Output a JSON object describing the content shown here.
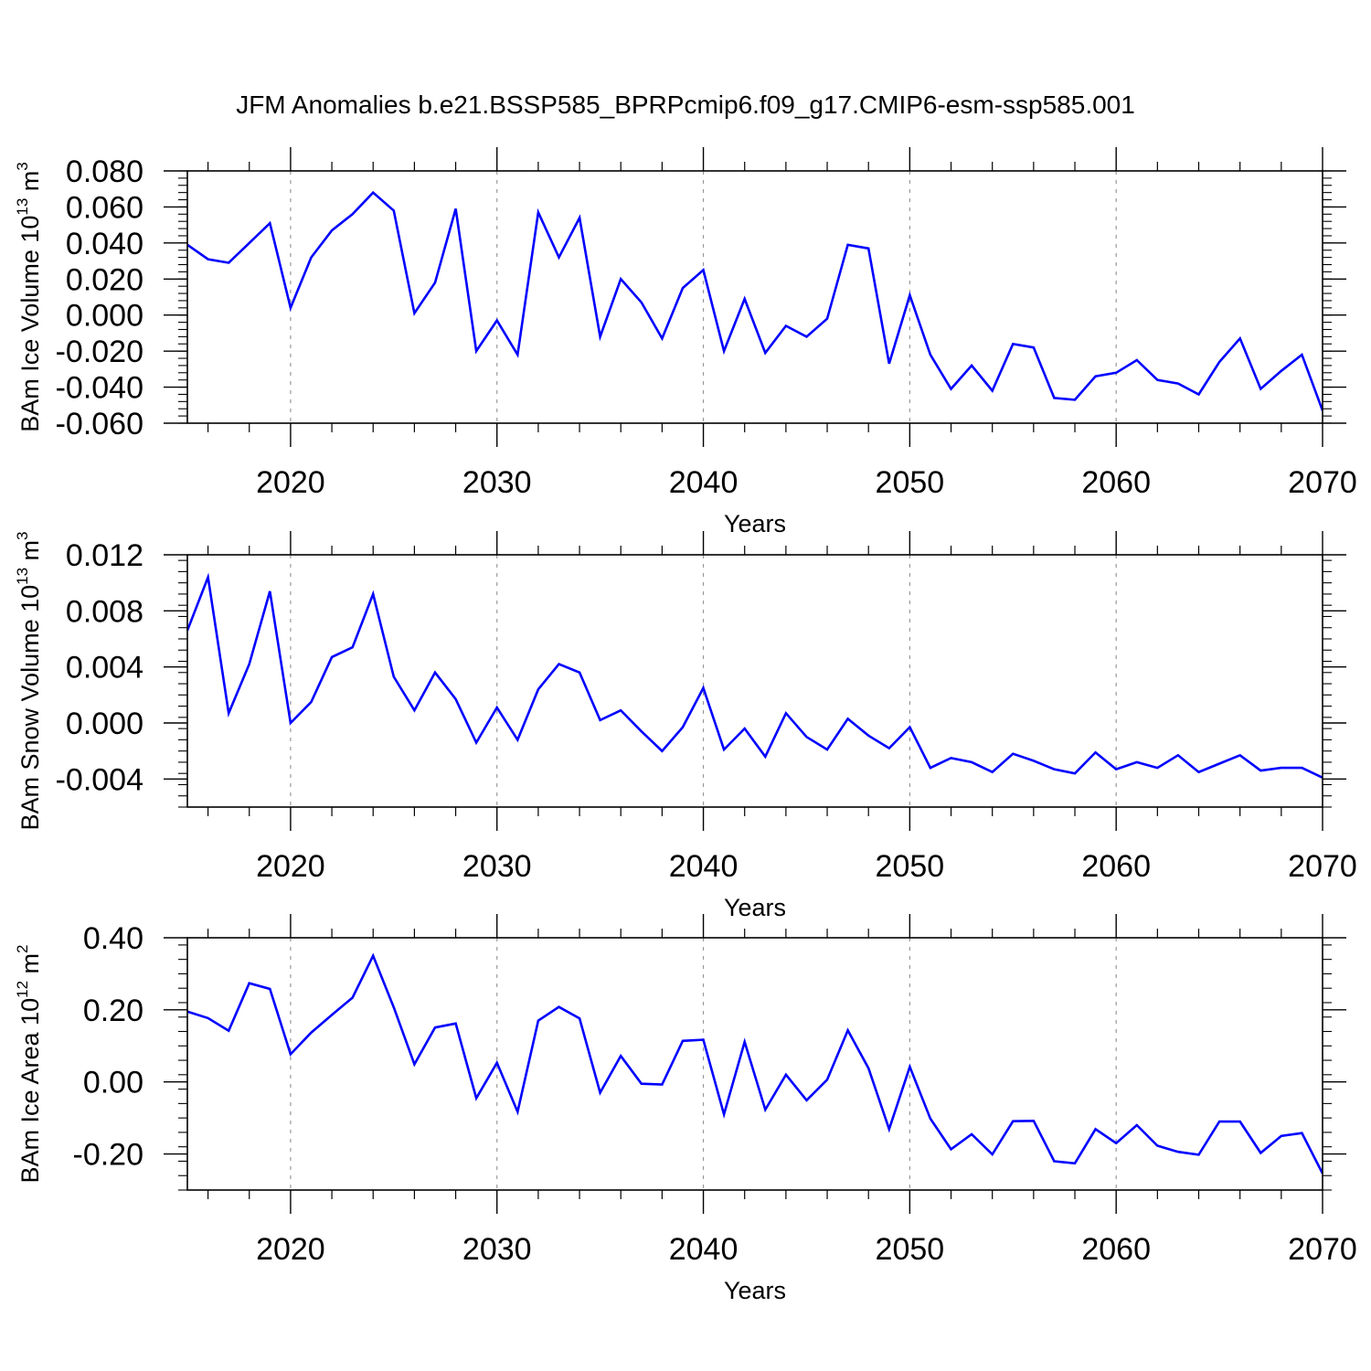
{
  "title": "JFM Anomalies b.e21.BSSP585_BPRPcmip6.f09_g17.CMIP6-esm-ssp585.001",
  "colors": {
    "line": "#0000ff",
    "axis": "#000000",
    "grid": "#999999"
  },
  "chart_data": [
    {
      "type": "line",
      "ylabel": {
        "main": "BAm Ice Volume 10",
        "exp1": "13",
        "mid": " m",
        "exp2": "3"
      },
      "xlabel": "Years",
      "xlim": [
        2015,
        2070
      ],
      "ylim": [
        -0.06,
        0.08
      ],
      "xticks": [
        2020,
        2030,
        2040,
        2050,
        2060,
        2070
      ],
      "xtick_labels": [
        "2020",
        "2030",
        "2040",
        "2050",
        "2060",
        "2070"
      ],
      "yticks": [
        -0.06,
        -0.04,
        -0.02,
        0.0,
        0.02,
        0.04,
        0.06,
        0.08
      ],
      "ytick_labels": [
        "-0.060",
        "-0.040",
        "-0.020",
        "0.000",
        "0.020",
        "0.040",
        "0.060",
        "0.080"
      ],
      "grid": "vertical dashed at major x ticks",
      "x": [
        2015,
        2016,
        2017,
        2018,
        2019,
        2020,
        2021,
        2022,
        2023,
        2024,
        2025,
        2026,
        2027,
        2028,
        2029,
        2030,
        2031,
        2032,
        2033,
        2034,
        2035,
        2036,
        2037,
        2038,
        2039,
        2040,
        2041,
        2042,
        2043,
        2044,
        2045,
        2046,
        2047,
        2048,
        2049,
        2050,
        2051,
        2052,
        2053,
        2054,
        2055,
        2056,
        2057,
        2058,
        2059,
        2060,
        2061,
        2062,
        2063,
        2064,
        2065,
        2066,
        2067,
        2068,
        2069,
        2070
      ],
      "values": [
        0.039,
        0.031,
        0.029,
        0.04,
        0.051,
        0.004,
        0.032,
        0.047,
        0.056,
        0.068,
        0.058,
        0.001,
        0.018,
        0.059,
        -0.02,
        -0.003,
        -0.022,
        0.057,
        0.032,
        0.054,
        -0.012,
        0.02,
        0.007,
        -0.013,
        0.015,
        0.025,
        -0.02,
        0.009,
        -0.021,
        -0.006,
        -0.012,
        -0.002,
        0.039,
        0.037,
        -0.027,
        0.011,
        -0.022,
        -0.041,
        -0.028,
        -0.042,
        -0.016,
        -0.018,
        -0.046,
        -0.047,
        -0.034,
        -0.032,
        -0.025,
        -0.036,
        -0.038,
        -0.044,
        -0.026,
        -0.013,
        -0.041,
        -0.031,
        -0.022,
        -0.053
      ]
    },
    {
      "type": "line",
      "ylabel": {
        "main": "BAm Snow Volume 10",
        "exp1": "13",
        "mid": " m",
        "exp2": "3"
      },
      "xlabel": "Years",
      "xlim": [
        2015,
        2070
      ],
      "ylim": [
        -0.006,
        0.012
      ],
      "xticks": [
        2020,
        2030,
        2040,
        2050,
        2060,
        2070
      ],
      "xtick_labels": [
        "2020",
        "2030",
        "2040",
        "2050",
        "2060",
        "2070"
      ],
      "yticks": [
        -0.004,
        0.0,
        0.004,
        0.008,
        0.012
      ],
      "ytick_labels": [
        "-0.004",
        "0.000",
        "0.004",
        "0.008",
        "0.012"
      ],
      "grid": "vertical dashed at major x ticks",
      "x": [
        2015,
        2016,
        2017,
        2018,
        2019,
        2020,
        2021,
        2022,
        2023,
        2024,
        2025,
        2026,
        2027,
        2028,
        2029,
        2030,
        2031,
        2032,
        2033,
        2034,
        2035,
        2036,
        2037,
        2038,
        2039,
        2040,
        2041,
        2042,
        2043,
        2044,
        2045,
        2046,
        2047,
        2048,
        2049,
        2050,
        2051,
        2052,
        2053,
        2054,
        2055,
        2056,
        2057,
        2058,
        2059,
        2060,
        2061,
        2062,
        2063,
        2064,
        2065,
        2066,
        2067,
        2068,
        2069,
        2070
      ],
      "values": [
        0.0066,
        0.0104,
        0.0007,
        0.0042,
        0.0094,
        0.0,
        0.0015,
        0.0047,
        0.0054,
        0.0092,
        0.0033,
        0.0009,
        0.0036,
        0.0017,
        -0.0014,
        0.0011,
        -0.0012,
        0.0024,
        0.0042,
        0.0036,
        0.0002,
        0.0009,
        -0.0006,
        -0.002,
        -0.0003,
        0.0025,
        -0.0019,
        -0.0004,
        -0.0024,
        0.0007,
        -0.001,
        -0.0019,
        0.0003,
        -0.0009,
        -0.0018,
        -0.0003,
        -0.0032,
        -0.0025,
        -0.0028,
        -0.0035,
        -0.0022,
        -0.0027,
        -0.0033,
        -0.0036,
        -0.0021,
        -0.0033,
        -0.0028,
        -0.0032,
        -0.0023,
        -0.0035,
        -0.0029,
        -0.0023,
        -0.0034,
        -0.0032,
        -0.0032,
        -0.0039
      ]
    },
    {
      "type": "line",
      "ylabel": {
        "main": "BAm Ice Area 10",
        "exp1": "12",
        "mid": " m",
        "exp2": "2"
      },
      "xlabel": "Years",
      "xlim": [
        2015,
        2070
      ],
      "ylim": [
        -0.3,
        0.4
      ],
      "xticks": [
        2020,
        2030,
        2040,
        2050,
        2060,
        2070
      ],
      "xtick_labels": [
        "2020",
        "2030",
        "2040",
        "2050",
        "2060",
        "2070"
      ],
      "yticks": [
        -0.2,
        0.0,
        0.2,
        0.4
      ],
      "ytick_labels": [
        "-0.20",
        "0.00",
        "0.20",
        "0.40"
      ],
      "grid": "vertical dashed at major x ticks",
      "x": [
        2015,
        2016,
        2017,
        2018,
        2019,
        2020,
        2021,
        2022,
        2023,
        2024,
        2025,
        2026,
        2027,
        2028,
        2029,
        2030,
        2031,
        2032,
        2033,
        2034,
        2035,
        2036,
        2037,
        2038,
        2039,
        2040,
        2041,
        2042,
        2043,
        2044,
        2045,
        2046,
        2047,
        2048,
        2049,
        2050,
        2051,
        2052,
        2053,
        2054,
        2055,
        2056,
        2057,
        2058,
        2059,
        2060,
        2061,
        2062,
        2063,
        2064,
        2065,
        2066,
        2067,
        2068,
        2069,
        2070
      ],
      "values": [
        0.195,
        0.177,
        0.142,
        0.274,
        0.258,
        0.077,
        0.137,
        0.186,
        0.234,
        0.35,
        0.207,
        0.049,
        0.151,
        0.162,
        -0.045,
        0.053,
        -0.083,
        0.17,
        0.208,
        0.176,
        -0.03,
        0.072,
        -0.005,
        -0.007,
        0.114,
        0.117,
        -0.09,
        0.111,
        -0.077,
        0.02,
        -0.051,
        0.006,
        0.143,
        0.038,
        -0.131,
        0.042,
        -0.102,
        -0.187,
        -0.145,
        -0.201,
        -0.109,
        -0.108,
        -0.22,
        -0.226,
        -0.131,
        -0.17,
        -0.12,
        -0.177,
        -0.194,
        -0.202,
        -0.11,
        -0.11,
        -0.197,
        -0.15,
        -0.142,
        -0.254
      ]
    }
  ]
}
